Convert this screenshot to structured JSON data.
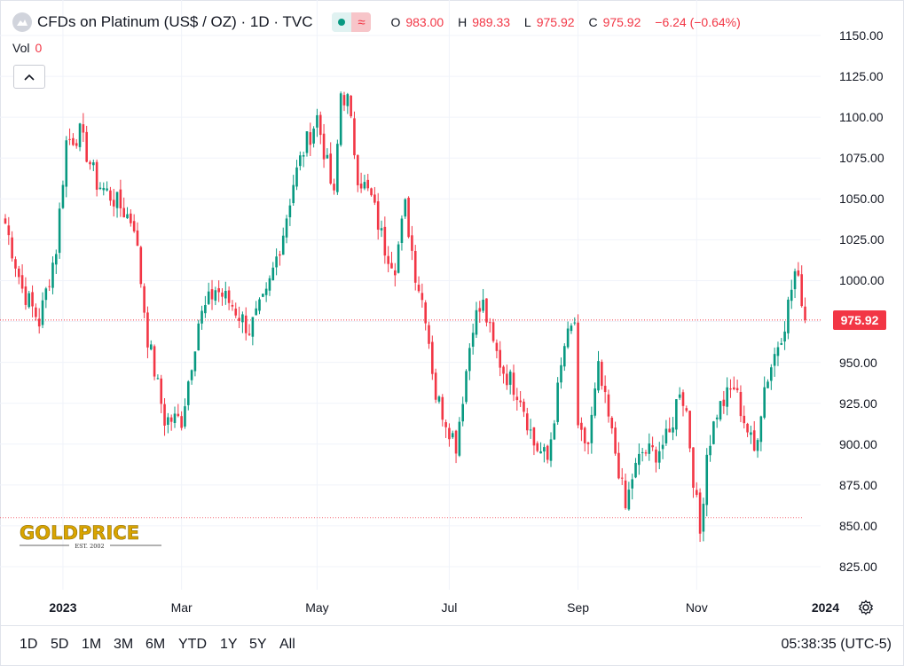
{
  "header": {
    "symbol_title": "CFDs on Platinum (US$ / OZ) · 1D · TVC",
    "ohlc": {
      "o_key": "O",
      "o_val": "983.00",
      "h_key": "H",
      "h_val": "989.33",
      "l_key": "L",
      "l_val": "975.92",
      "c_key": "C",
      "c_val": "975.92",
      "change": "−6.24 (−0.64%)"
    },
    "approx_symbol": "≈"
  },
  "volume": {
    "label": "Vol",
    "value": "0"
  },
  "watermark": {
    "brand": "GOLDPRICE",
    "est": "EST. 2002"
  },
  "current_price_label": "975.92",
  "timeframes": [
    "1D",
    "5D",
    "1M",
    "3M",
    "6M",
    "YTD",
    "1Y",
    "5Y",
    "All"
  ],
  "clock": "05:38:35 (UTC-5)",
  "icons": {
    "legend": "symbol-logo-icon",
    "collapse": "chevron-up-icon",
    "settings": "gear-icon"
  },
  "colors": {
    "up": "#089981",
    "down": "#f23645",
    "grid": "#f0f3fa",
    "last_price_line": "#f23645"
  },
  "chart_data": {
    "type": "candlestick",
    "title": "CFDs on Platinum (US$ / OZ) · 1D · TVC",
    "ylim": [
      815,
      1155
    ],
    "y_ticks": [
      1150,
      1125,
      1100,
      1075,
      1050,
      1025,
      1000,
      950,
      925,
      900,
      875,
      850,
      825
    ],
    "x_ticks": [
      {
        "label": "2023",
        "bold": true,
        "index": 17
      },
      {
        "label": "Mar",
        "bold": false,
        "index": 52
      },
      {
        "label": "May",
        "bold": false,
        "index": 92
      },
      {
        "label": "Jul",
        "bold": false,
        "index": 131
      },
      {
        "label": "Sep",
        "bold": false,
        "index": 169
      },
      {
        "label": "Nov",
        "bold": false,
        "index": 204
      },
      {
        "label": "2024",
        "bold": true,
        "index": 242
      }
    ],
    "last_price": 975.92,
    "reference_line": 855,
    "path_points": [
      [
        0,
        1035
      ],
      [
        5,
        995
      ],
      [
        10,
        975
      ],
      [
        15,
        1020
      ],
      [
        18,
        1085
      ],
      [
        22,
        1090
      ],
      [
        27,
        1060
      ],
      [
        32,
        1050
      ],
      [
        38,
        1035
      ],
      [
        42,
        965
      ],
      [
        47,
        915
      ],
      [
        52,
        915
      ],
      [
        57,
        975
      ],
      [
        62,
        995
      ],
      [
        67,
        985
      ],
      [
        72,
        970
      ],
      [
        77,
        990
      ],
      [
        82,
        1030
      ],
      [
        85,
        1060
      ],
      [
        88,
        1080
      ],
      [
        92,
        1100
      ],
      [
        95,
        1070
      ],
      [
        97,
        1050
      ],
      [
        99,
        1115
      ],
      [
        101,
        1110
      ],
      [
        104,
        1065
      ],
      [
        108,
        1050
      ],
      [
        112,
        1020
      ],
      [
        115,
        1010
      ],
      [
        118,
        1045
      ],
      [
        121,
        1005
      ],
      [
        124,
        980
      ],
      [
        127,
        930
      ],
      [
        130,
        915
      ],
      [
        133,
        900
      ],
      [
        135,
        930
      ],
      [
        138,
        975
      ],
      [
        141,
        985
      ],
      [
        144,
        960
      ],
      [
        147,
        945
      ],
      [
        152,
        930
      ],
      [
        156,
        900
      ],
      [
        160,
        890
      ],
      [
        165,
        960
      ],
      [
        168,
        975
      ],
      [
        169,
        905
      ],
      [
        172,
        900
      ],
      [
        175,
        945
      ],
      [
        178,
        915
      ],
      [
        181,
        885
      ],
      [
        183,
        860
      ],
      [
        185,
        880
      ],
      [
        188,
        895
      ],
      [
        192,
        895
      ],
      [
        196,
        905
      ],
      [
        199,
        935
      ],
      [
        201,
        920
      ],
      [
        203,
        880
      ],
      [
        205,
        845
      ],
      [
        207,
        895
      ],
      [
        210,
        920
      ],
      [
        215,
        935
      ],
      [
        218,
        915
      ],
      [
        221,
        895
      ],
      [
        224,
        935
      ],
      [
        227,
        955
      ],
      [
        230,
        975
      ],
      [
        233,
        1005
      ],
      [
        235,
        990
      ],
      [
        236,
        976
      ]
    ],
    "candle_count": 237
  }
}
